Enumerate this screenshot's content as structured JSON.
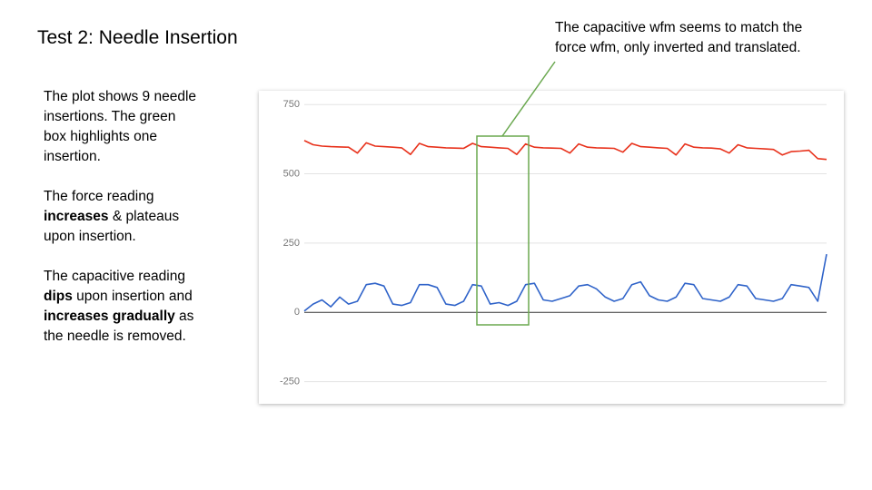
{
  "header": {
    "title": "Test 2: Needle Insertion"
  },
  "notes": [
    [
      {
        "text": "The plot shows  9 needle insertions. The green box highlights one insertion.",
        "bold": false
      }
    ],
    [
      {
        "text": "The force reading ",
        "bold": false
      },
      {
        "text": "increases",
        "bold": true
      },
      {
        "text": " & plateaus upon insertion.",
        "bold": false
      }
    ],
    [
      {
        "text": "The capacitive reading ",
        "bold": false
      },
      {
        "text": "dips",
        "bold": true
      },
      {
        "text": " upon insertion and ",
        "bold": false
      },
      {
        "text": "increases gradually",
        "bold": true
      },
      {
        "text": " as the needle is removed.",
        "bold": false
      }
    ]
  ],
  "callout": "The capacitive wfm seems to match the force wfm, only inverted and translated.",
  "chart_data": {
    "type": "line",
    "ylim": [
      -330,
      790
    ],
    "yticks": [
      750,
      500,
      250,
      0,
      -250
    ],
    "grid": true,
    "series": [
      {
        "color": "#e8321c",
        "values": [
          620,
          605,
          600,
          598,
          597,
          596,
          575,
          612,
          600,
          598,
          596,
          594,
          570,
          610,
          598,
          596,
          594,
          593,
          592,
          610,
          598,
          596,
          594,
          592,
          570,
          608,
          596,
          594,
          593,
          592,
          575,
          608,
          596,
          594,
          593,
          592,
          578,
          610,
          598,
          596,
          594,
          592,
          568,
          608,
          596,
          594,
          593,
          590,
          575,
          605,
          594,
          592,
          590,
          588,
          568,
          580,
          582,
          585,
          555,
          552
        ]
      },
      {
        "color": "#2f63c9",
        "values": [
          5,
          30,
          45,
          20,
          55,
          30,
          40,
          100,
          105,
          95,
          30,
          25,
          35,
          100,
          100,
          90,
          30,
          25,
          40,
          100,
          95,
          30,
          35,
          25,
          40,
          100,
          105,
          45,
          40,
          50,
          60,
          95,
          100,
          85,
          55,
          40,
          50,
          100,
          110,
          60,
          45,
          40,
          55,
          105,
          100,
          50,
          45,
          40,
          55,
          100,
          95,
          50,
          45,
          40,
          50,
          100,
          95,
          90,
          40,
          210
        ]
      }
    ]
  }
}
